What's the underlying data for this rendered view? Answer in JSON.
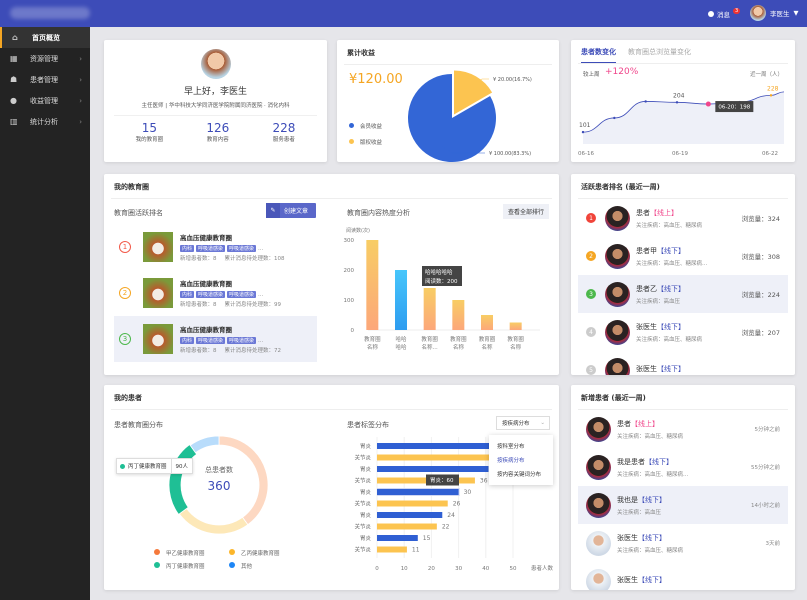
{
  "header": {
    "messages_label": "消息",
    "messages_count": "3",
    "user_name": "李医生"
  },
  "sidebar": {
    "items": [
      {
        "label": "首页概览",
        "icon": "home-icon"
      },
      {
        "label": "资源管理",
        "icon": "resource-icon"
      },
      {
        "label": "患者管理",
        "icon": "patient-icon"
      },
      {
        "label": "收益管理",
        "icon": "money-bag-icon"
      },
      {
        "label": "统计分析",
        "icon": "bar-chart-icon"
      }
    ]
  },
  "profile": {
    "greeting": "早上好，李医生",
    "title": "主任医师",
    "separator": "|",
    "hospital": "华中科技大学同济医学院附属同济医院 · 消化内科",
    "stats": [
      {
        "value": "15",
        "label": "我的教育圈"
      },
      {
        "value": "126",
        "label": "教育内容"
      },
      {
        "value": "228",
        "label": "服务患者"
      }
    ]
  },
  "revenue": {
    "title": "累计收益",
    "total": "¥120.00",
    "legend": [
      "会员收益",
      "版权收益"
    ],
    "labels": [
      "¥ 20.00(16.7%)",
      "¥ 100.00(83.3%)"
    ],
    "values": [
      100,
      20
    ],
    "colors": [
      "#3366d6",
      "#fcc450"
    ]
  },
  "trend": {
    "tabs": [
      "患者数变化",
      "教育圈总浏览量变化"
    ],
    "compare_label": "较上周",
    "compare_value": "+120%",
    "range_label": "近一周（人）",
    "x": [
      "06-16",
      "06-17",
      "06-18",
      "06-19",
      "06-20",
      "06-21",
      "06-22"
    ],
    "xlabels": [
      "06-16",
      "06-19",
      "06-22"
    ],
    "values": [
      101,
      150,
      207,
      204,
      198,
      205,
      228
    ],
    "point_labels": {
      "first": "101",
      "peak": "204",
      "last": "228"
    },
    "tooltip": "06-20：198"
  },
  "edu": {
    "title": "我的教育圈",
    "rank_title": "教育圈活跃排名",
    "create_button": "创建文章",
    "items": [
      {
        "rank": "1",
        "name": "高血压健康教育圈",
        "tags": [
          "内科",
          "呼吸道感染",
          "呼吸道感染"
        ],
        "more": "...",
        "new_label": "新增患者数：",
        "new": "8",
        "pending_label": "累计消息待处理数：",
        "pending": "108"
      },
      {
        "rank": "2",
        "name": "高血压健康教育圈",
        "tags": [
          "内科",
          "呼吸道感染",
          "呼吸道感染"
        ],
        "more": "...",
        "new_label": "新增患者数：",
        "new": "8",
        "pending_label": "累计消息待处理数：",
        "pending": "99"
      },
      {
        "rank": "3",
        "name": "高血压健康教育圈",
        "tags": [
          "内科",
          "呼吸道感染",
          "呼吸道感染"
        ],
        "more": "...",
        "new_label": "新增患者数：",
        "new": "8",
        "pending_label": "累计消息待处理数：",
        "pending": "72"
      }
    ],
    "heat_title": "教育圈内容热度分析",
    "view_all": "查看全部排行",
    "tooltip_name": "哈哈哈哈哈",
    "tooltip_value": "阅读数：200"
  },
  "active": {
    "title": "活跃患者排名 (最近一周)",
    "views_label": "浏览量：",
    "items": [
      {
        "rank": "1",
        "name": "患者",
        "mode": "【线上】",
        "online": true,
        "disease": "关注疾病：高血压、糖尿病",
        "views": "324"
      },
      {
        "rank": "2",
        "name": "患者甲",
        "mode": "【线下】",
        "online": false,
        "disease": "关注疾病：高血压、糖尿病...",
        "views": "308"
      },
      {
        "rank": "3",
        "name": "患者乙",
        "mode": "【线下】",
        "online": false,
        "disease": "关注疾病：高血压",
        "views": "224"
      },
      {
        "rank": "4",
        "name": "张医生",
        "mode": "【线下】",
        "online": false,
        "disease": "关注疾病：高血压、糖尿病",
        "views": "207"
      },
      {
        "rank": "5",
        "name": "张医生",
        "mode": "【线下】",
        "online": false,
        "disease": "",
        "views": ""
      }
    ]
  },
  "patients": {
    "title": "我的患者",
    "dist_title": "患者教育圈分布",
    "center_label": "总患者数",
    "total": "360",
    "tooltip_name": "丙丁健康教育圈",
    "tooltip_value": "90人",
    "tag_title": "患者标签分布",
    "select_value": "按疾病分布",
    "options": [
      "按科室分布",
      "按疾病分布",
      "按内容关键词分布"
    ],
    "bar_tooltip": "胃炎：60"
  },
  "newp": {
    "title": "新增患者 (最近一周)",
    "items": [
      {
        "name": "患者",
        "mode": "【线上】",
        "online": true,
        "disease": "关注疾病：高血压、糖尿病",
        "time": "5分钟之前"
      },
      {
        "name": "我是患者",
        "mode": "【线下】",
        "online": false,
        "disease": "关注疾病：高血压、糖尿病...",
        "time": "55分钟之前"
      },
      {
        "name": "我也是",
        "mode": "【线下】",
        "online": false,
        "disease": "关注疾病：高血压",
        "time": "14小时之前"
      },
      {
        "name": "张医生",
        "mode": "【线下】",
        "online": false,
        "disease": "关注疾病：高血压、糖尿病",
        "time": "3天前"
      },
      {
        "name": "张医生",
        "mode": "【线下】",
        "online": false,
        "disease": "",
        "time": ""
      }
    ]
  },
  "chart_data": [
    {
      "type": "bar",
      "title": "教育圈内容热度分析",
      "ylabel": "阅读数(次)",
      "categories": [
        "教育圈名称",
        "哈哈哈哈",
        "教育圈名称...",
        "教育圈名称",
        "教育圈名称",
        "教育圈名称"
      ],
      "values": [
        300,
        200,
        140,
        100,
        50,
        25
      ],
      "ylim": [
        0,
        300
      ],
      "yticks": [
        0,
        100,
        200,
        300
      ]
    },
    {
      "type": "pie",
      "title": "患者教育圈分布",
      "categories": [
        "甲乙健康教育圈",
        "乙丙健康教育圈",
        "丙丁健康教育圈",
        "其他"
      ],
      "values": [
        144,
        90,
        90,
        36
      ],
      "colors": [
        "#fdd8c2",
        "#fde8b8",
        "#1fbf95",
        "#b8dcfb"
      ],
      "legend_colors": [
        "#f5793b",
        "#fcb62a",
        "#1fbf95",
        "#1e86f5"
      ]
    },
    {
      "type": "bar",
      "title": "患者标签分布",
      "xlabel": "患者人数",
      "categories": [
        "胃炎",
        "关节炎",
        "胃炎",
        "关节炎",
        "胃炎",
        "关节炎",
        "胃炎",
        "关节炎",
        "胃炎",
        "关节炎"
      ],
      "values": [
        60,
        50,
        41,
        36,
        30,
        26,
        24,
        22,
        15,
        11
      ],
      "xlim": [
        0,
        60
      ],
      "xticks": [
        0,
        10,
        20,
        30,
        40,
        50
      ]
    }
  ]
}
